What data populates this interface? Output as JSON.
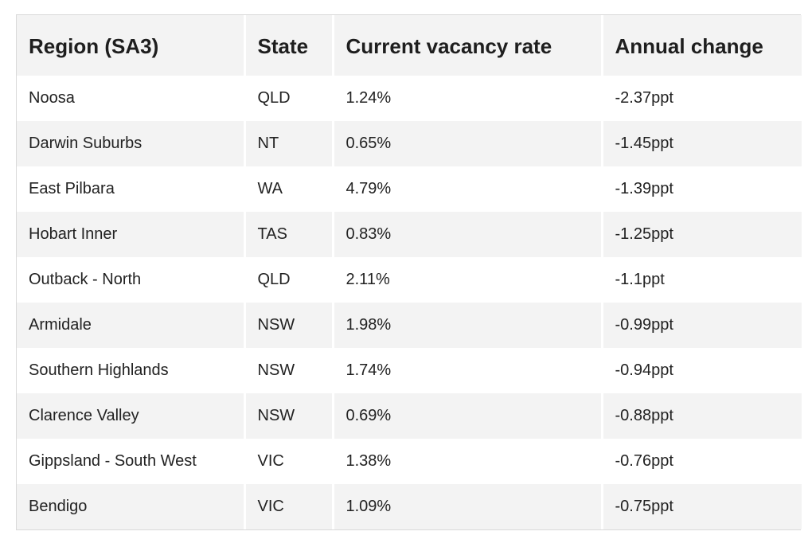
{
  "table": {
    "headers": [
      "Region (SA3)",
      "State",
      "Current vacancy rate",
      "Annual change"
    ],
    "rows": [
      [
        "Noosa",
        "QLD",
        "1.24%",
        "-2.37ppt"
      ],
      [
        "Darwin Suburbs",
        "NT",
        "0.65%",
        "-1.45ppt"
      ],
      [
        "East Pilbara",
        "WA",
        "4.79%",
        "-1.39ppt"
      ],
      [
        "Hobart Inner",
        "TAS",
        "0.83%",
        "-1.25ppt"
      ],
      [
        "Outback - North",
        "QLD",
        "2.11%",
        "-1.1ppt"
      ],
      [
        "Armidale",
        "NSW",
        "1.98%",
        "-0.99ppt"
      ],
      [
        "Southern Highlands",
        "NSW",
        "1.74%",
        "-0.94ppt"
      ],
      [
        "Clarence Valley",
        "NSW",
        "0.69%",
        "-0.88ppt"
      ],
      [
        "Gippsland - South West",
        "VIC",
        "1.38%",
        "-0.76ppt"
      ],
      [
        "Bendigo",
        "VIC",
        "1.09%",
        "-0.75ppt"
      ]
    ]
  }
}
